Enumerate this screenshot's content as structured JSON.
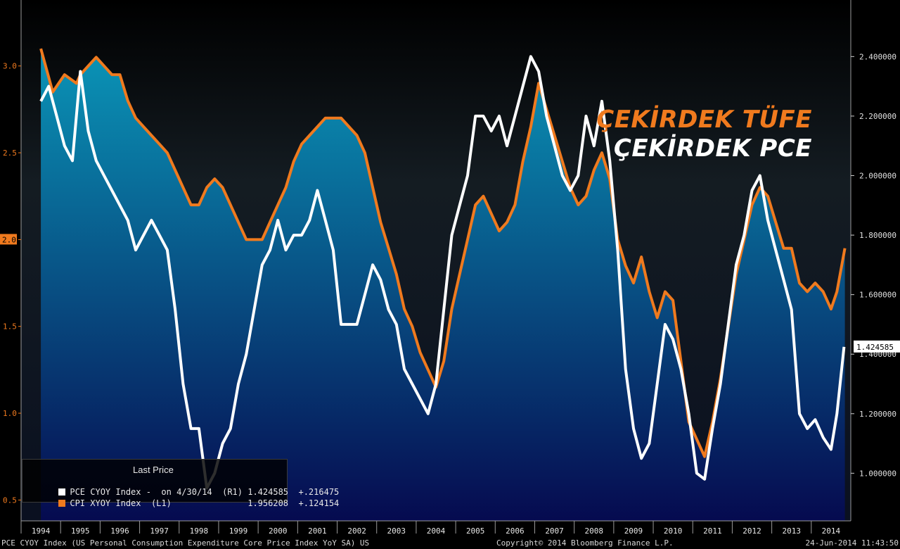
{
  "overlay_titles": {
    "cpi": "ÇEKİRDEK TÜFE",
    "pce": "ÇEKİRDEK PCE"
  },
  "legend": {
    "header": "Last Price",
    "pce_row": "PCE CYOY Index -  on 4/30/14  (R1) 1.424585  +.216475",
    "cpi_row": "CPI XYOY Index  (L1)               1.956208  +.124154"
  },
  "footer": {
    "left": "PCE CYOY Index (US Personal Consumption Expenditure Core Price Index YoY SA) US",
    "copyright": "Copyright© 2014 Bloomberg Finance L.P.",
    "timestamp": "24-Jun-2014 11:43:50"
  },
  "colors": {
    "cpi": "#f07a1e",
    "pce": "#ffffff",
    "fill_top": "#0a9cc0",
    "fill_bottom": "#050a52",
    "background": "#000000"
  },
  "chart_data": {
    "type": "line",
    "x_unit": "year (decimal)",
    "x_range": [
      1993.5,
      2014.5
    ],
    "x_tick_labels": [
      "1994",
      "1995",
      "1996",
      "1997",
      "1998",
      "1999",
      "2000",
      "2001",
      "2002",
      "2003",
      "2004",
      "2005",
      "2006",
      "2007",
      "2008",
      "2009",
      "2010",
      "2011",
      "2012",
      "2013",
      "2014"
    ],
    "left_axis": {
      "range": [
        0.38,
        3.38
      ],
      "ticks": [
        0.5,
        1.0,
        1.5,
        2.0,
        2.5,
        3.0
      ],
      "tick_labels": [
        "0.5",
        "1.0",
        "1.5",
        "2.0",
        "2.5",
        "3.0"
      ],
      "last_value_label": "2.0"
    },
    "right_axis": {
      "range": [
        0.84,
        2.59
      ],
      "ticks": [
        1.0,
        1.2,
        1.4,
        1.6,
        1.8,
        2.0,
        2.2,
        2.4
      ],
      "tick_labels": [
        "1.000000",
        "1.200000",
        "1.400000",
        "1.600000",
        "1.800000",
        "2.000000",
        "2.200000",
        "2.400000"
      ],
      "last_value_label": "1.424585"
    },
    "series": [
      {
        "name": "CPI XYOY Index",
        "axis": "left",
        "color": "#f07a1e",
        "points": [
          [
            1994.0,
            3.1
          ],
          [
            1994.3,
            2.85
          ],
          [
            1994.6,
            2.95
          ],
          [
            1994.9,
            2.9
          ],
          [
            1995.0,
            2.95
          ],
          [
            1995.2,
            3.0
          ],
          [
            1995.4,
            3.05
          ],
          [
            1995.6,
            3.0
          ],
          [
            1995.8,
            2.95
          ],
          [
            1996.0,
            2.95
          ],
          [
            1996.2,
            2.8
          ],
          [
            1996.4,
            2.7
          ],
          [
            1996.6,
            2.65
          ],
          [
            1996.8,
            2.6
          ],
          [
            1997.0,
            2.55
          ],
          [
            1997.2,
            2.5
          ],
          [
            1997.4,
            2.4
          ],
          [
            1997.6,
            2.3
          ],
          [
            1997.8,
            2.2
          ],
          [
            1998.0,
            2.2
          ],
          [
            1998.2,
            2.3
          ],
          [
            1998.4,
            2.35
          ],
          [
            1998.6,
            2.3
          ],
          [
            1998.8,
            2.2
          ],
          [
            1999.0,
            2.1
          ],
          [
            1999.2,
            2.0
          ],
          [
            1999.4,
            2.0
          ],
          [
            1999.6,
            2.0
          ],
          [
            1999.8,
            2.1
          ],
          [
            2000.0,
            2.2
          ],
          [
            2000.2,
            2.3
          ],
          [
            2000.4,
            2.45
          ],
          [
            2000.6,
            2.55
          ],
          [
            2000.8,
            2.6
          ],
          [
            2001.0,
            2.65
          ],
          [
            2001.2,
            2.7
          ],
          [
            2001.4,
            2.7
          ],
          [
            2001.6,
            2.7
          ],
          [
            2001.8,
            2.65
          ],
          [
            2002.0,
            2.6
          ],
          [
            2002.2,
            2.5
          ],
          [
            2002.4,
            2.3
          ],
          [
            2002.6,
            2.1
          ],
          [
            2002.8,
            1.95
          ],
          [
            2003.0,
            1.8
          ],
          [
            2003.2,
            1.6
          ],
          [
            2003.4,
            1.5
          ],
          [
            2003.6,
            1.35
          ],
          [
            2003.8,
            1.25
          ],
          [
            2004.0,
            1.15
          ],
          [
            2004.2,
            1.3
          ],
          [
            2004.4,
            1.6
          ],
          [
            2004.6,
            1.8
          ],
          [
            2004.8,
            2.0
          ],
          [
            2005.0,
            2.2
          ],
          [
            2005.2,
            2.25
          ],
          [
            2005.4,
            2.15
          ],
          [
            2005.6,
            2.05
          ],
          [
            2005.8,
            2.1
          ],
          [
            2006.0,
            2.2
          ],
          [
            2006.2,
            2.45
          ],
          [
            2006.4,
            2.65
          ],
          [
            2006.6,
            2.9
          ],
          [
            2006.8,
            2.75
          ],
          [
            2007.0,
            2.6
          ],
          [
            2007.2,
            2.45
          ],
          [
            2007.4,
            2.3
          ],
          [
            2007.6,
            2.2
          ],
          [
            2007.8,
            2.25
          ],
          [
            2008.0,
            2.4
          ],
          [
            2008.2,
            2.5
          ],
          [
            2008.4,
            2.35
          ],
          [
            2008.6,
            2.0
          ],
          [
            2008.8,
            1.85
          ],
          [
            2009.0,
            1.75
          ],
          [
            2009.2,
            1.9
          ],
          [
            2009.4,
            1.7
          ],
          [
            2009.6,
            1.55
          ],
          [
            2009.8,
            1.7
          ],
          [
            2010.0,
            1.65
          ],
          [
            2010.2,
            1.3
          ],
          [
            2010.4,
            0.95
          ],
          [
            2010.6,
            0.85
          ],
          [
            2010.8,
            0.75
          ],
          [
            2011.0,
            0.95
          ],
          [
            2011.2,
            1.2
          ],
          [
            2011.4,
            1.5
          ],
          [
            2011.6,
            1.8
          ],
          [
            2011.8,
            2.0
          ],
          [
            2012.0,
            2.2
          ],
          [
            2012.2,
            2.3
          ],
          [
            2012.4,
            2.25
          ],
          [
            2012.6,
            2.1
          ],
          [
            2012.8,
            1.95
          ],
          [
            2013.0,
            1.95
          ],
          [
            2013.2,
            1.75
          ],
          [
            2013.4,
            1.7
          ],
          [
            2013.6,
            1.75
          ],
          [
            2013.8,
            1.7
          ],
          [
            2014.0,
            1.6
          ],
          [
            2014.15,
            1.7
          ],
          [
            2014.35,
            1.95
          ]
        ]
      },
      {
        "name": "PCE CYOY Index",
        "axis": "right",
        "color": "#ffffff",
        "points": [
          [
            1994.0,
            2.25
          ],
          [
            1994.2,
            2.3
          ],
          [
            1994.4,
            2.2
          ],
          [
            1994.6,
            2.1
          ],
          [
            1994.8,
            2.05
          ],
          [
            1995.0,
            2.35
          ],
          [
            1995.2,
            2.15
          ],
          [
            1995.4,
            2.05
          ],
          [
            1995.6,
            2.0
          ],
          [
            1995.8,
            1.95
          ],
          [
            1996.0,
            1.9
          ],
          [
            1996.2,
            1.85
          ],
          [
            1996.4,
            1.75
          ],
          [
            1996.6,
            1.8
          ],
          [
            1996.8,
            1.85
          ],
          [
            1997.0,
            1.8
          ],
          [
            1997.2,
            1.75
          ],
          [
            1997.4,
            1.55
          ],
          [
            1997.6,
            1.3
          ],
          [
            1997.8,
            1.15
          ],
          [
            1998.0,
            1.15
          ],
          [
            1998.2,
            0.95
          ],
          [
            1998.4,
            1.0
          ],
          [
            1998.6,
            1.1
          ],
          [
            1998.8,
            1.15
          ],
          [
            1999.0,
            1.3
          ],
          [
            1999.2,
            1.4
          ],
          [
            1999.4,
            1.55
          ],
          [
            1999.6,
            1.7
          ],
          [
            1999.8,
            1.75
          ],
          [
            2000.0,
            1.85
          ],
          [
            2000.2,
            1.75
          ],
          [
            2000.4,
            1.8
          ],
          [
            2000.6,
            1.8
          ],
          [
            2000.8,
            1.85
          ],
          [
            2001.0,
            1.95
          ],
          [
            2001.2,
            1.85
          ],
          [
            2001.4,
            1.75
          ],
          [
            2001.6,
            1.5
          ],
          [
            2001.8,
            1.5
          ],
          [
            2002.0,
            1.5
          ],
          [
            2002.2,
            1.6
          ],
          [
            2002.4,
            1.7
          ],
          [
            2002.6,
            1.65
          ],
          [
            2002.8,
            1.55
          ],
          [
            2003.0,
            1.5
          ],
          [
            2003.2,
            1.35
          ],
          [
            2003.4,
            1.3
          ],
          [
            2003.6,
            1.25
          ],
          [
            2003.8,
            1.2
          ],
          [
            2004.0,
            1.3
          ],
          [
            2004.2,
            1.55
          ],
          [
            2004.4,
            1.8
          ],
          [
            2004.6,
            1.9
          ],
          [
            2004.8,
            2.0
          ],
          [
            2005.0,
            2.2
          ],
          [
            2005.2,
            2.2
          ],
          [
            2005.4,
            2.15
          ],
          [
            2005.6,
            2.2
          ],
          [
            2005.8,
            2.1
          ],
          [
            2006.0,
            2.2
          ],
          [
            2006.2,
            2.3
          ],
          [
            2006.4,
            2.4
          ],
          [
            2006.6,
            2.35
          ],
          [
            2006.8,
            2.2
          ],
          [
            2007.0,
            2.1
          ],
          [
            2007.2,
            2.0
          ],
          [
            2007.4,
            1.95
          ],
          [
            2007.6,
            2.0
          ],
          [
            2007.8,
            2.2
          ],
          [
            2008.0,
            2.1
          ],
          [
            2008.2,
            2.25
          ],
          [
            2008.4,
            2.05
          ],
          [
            2008.6,
            1.75
          ],
          [
            2008.8,
            1.35
          ],
          [
            2009.0,
            1.15
          ],
          [
            2009.2,
            1.05
          ],
          [
            2009.4,
            1.1
          ],
          [
            2009.6,
            1.3
          ],
          [
            2009.8,
            1.5
          ],
          [
            2010.0,
            1.45
          ],
          [
            2010.2,
            1.35
          ],
          [
            2010.4,
            1.2
          ],
          [
            2010.6,
            1.0
          ],
          [
            2010.8,
            0.98
          ],
          [
            2011.0,
            1.15
          ],
          [
            2011.2,
            1.3
          ],
          [
            2011.4,
            1.5
          ],
          [
            2011.6,
            1.7
          ],
          [
            2011.8,
            1.8
          ],
          [
            2012.0,
            1.95
          ],
          [
            2012.2,
            2.0
          ],
          [
            2012.4,
            1.85
          ],
          [
            2012.6,
            1.75
          ],
          [
            2012.8,
            1.65
          ],
          [
            2013.0,
            1.55
          ],
          [
            2013.2,
            1.2
          ],
          [
            2013.4,
            1.15
          ],
          [
            2013.6,
            1.18
          ],
          [
            2013.8,
            1.12
          ],
          [
            2014.0,
            1.08
          ],
          [
            2014.15,
            1.2
          ],
          [
            2014.33,
            1.424585
          ]
        ]
      }
    ],
    "legend_placement": "bottom-left",
    "grid": false
  }
}
